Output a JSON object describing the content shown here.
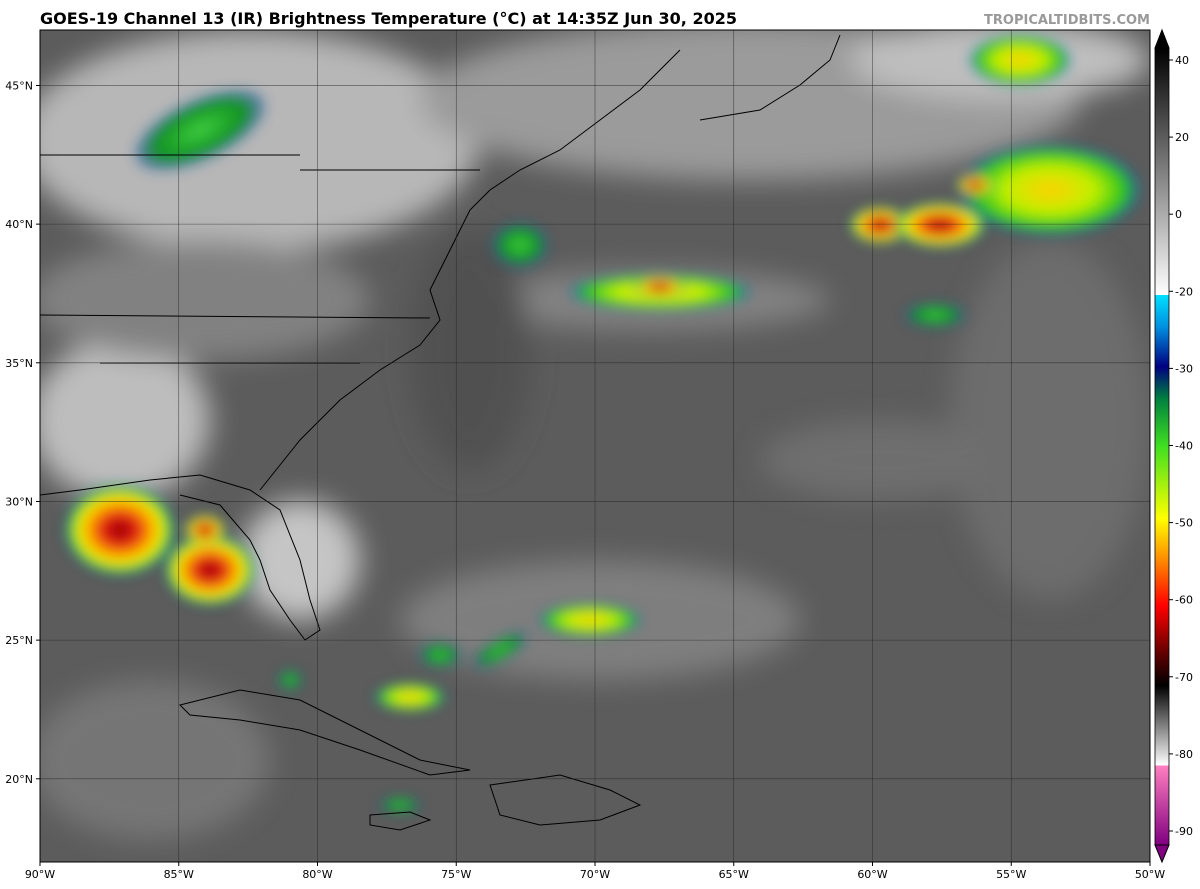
{
  "map": {
    "title": "GOES-19 Channel 13 (IR) Brightness Temperature (°C) at 14:35Z Jun 30, 2025",
    "source": "TROPICALTIDBITS.COM",
    "xlim": [
      -90,
      -50
    ],
    "ylim": [
      17,
      47
    ],
    "xticks": [
      {
        "value": -90,
        "label": "90°W"
      },
      {
        "value": -85,
        "label": "85°W"
      },
      {
        "value": -80,
        "label": "80°W"
      },
      {
        "value": -75,
        "label": "75°W"
      },
      {
        "value": -70,
        "label": "70°W"
      },
      {
        "value": -65,
        "label": "65°W"
      },
      {
        "value": -60,
        "label": "60°W"
      },
      {
        "value": -55,
        "label": "55°W"
      },
      {
        "value": -50,
        "label": "50°W"
      }
    ],
    "yticks": [
      {
        "value": 20,
        "label": "20°N"
      },
      {
        "value": 25,
        "label": "25°N"
      },
      {
        "value": 30,
        "label": "30°N"
      },
      {
        "value": 35,
        "label": "35°N"
      },
      {
        "value": 40,
        "label": "40°N"
      },
      {
        "value": 45,
        "label": "45°N"
      }
    ]
  },
  "colorbar": {
    "ticks": [
      40,
      20,
      0,
      -20,
      -30,
      -40,
      -50,
      -60,
      -70,
      -80,
      -90
    ]
  }
}
